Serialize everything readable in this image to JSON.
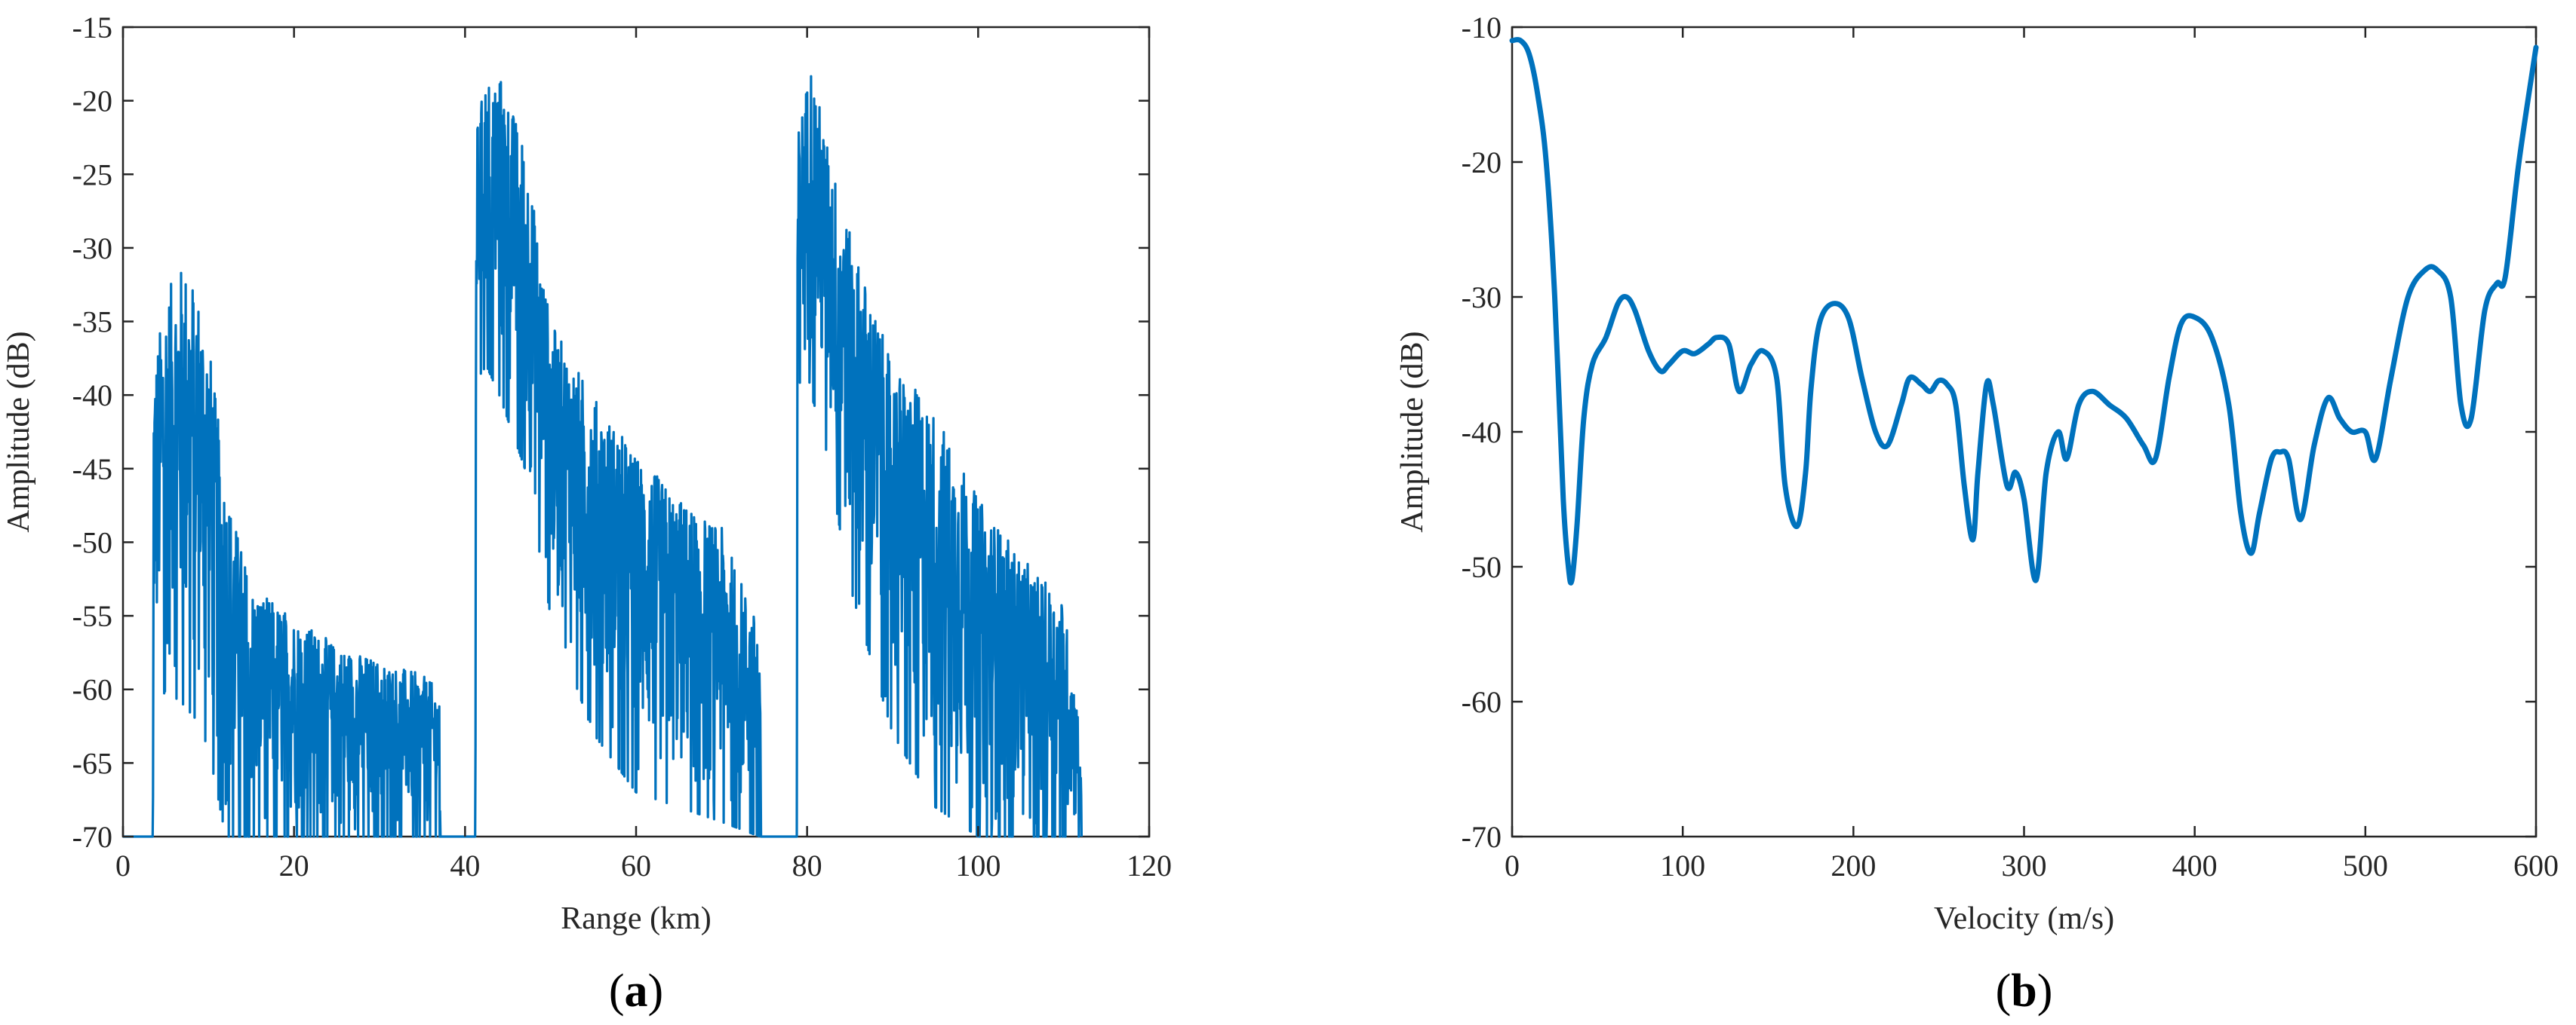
{
  "colors": {
    "series": "#0072BD",
    "axis": "#262626",
    "background": "#ffffff"
  },
  "chart_data": [
    {
      "type": "line",
      "panel_label": "a",
      "xlabel": "Range (km)",
      "ylabel": "Amplitude (dB)",
      "xlim": [
        0,
        120
      ],
      "ylim": [
        -70,
        -15
      ],
      "xticks": [
        0,
        20,
        40,
        60,
        80,
        100,
        120
      ],
      "yticks": [
        -15,
        -20,
        -25,
        -30,
        -35,
        -40,
        -45,
        -50,
        -55,
        -60,
        -65,
        -70
      ],
      "grid": false,
      "series": [
        {
          "style": "dense oscillating returns (estimated envelopes)",
          "x": [
            0,
            3.5,
            3.6,
            5,
            7,
            8.5,
            10,
            12,
            15,
            20,
            25,
            30,
            35,
            37,
            37.1,
            41.2,
            41.3,
            42.5,
            44,
            47,
            50,
            55,
            60,
            65,
            70,
            74.5,
            74.6,
            78.8,
            78.9,
            80.5,
            82,
            85,
            90,
            95,
            100,
            105,
            110,
            112,
            112.1
          ],
          "upper": [
            -70,
            -70,
            -38,
            -33,
            -31,
            -32,
            -36,
            -46,
            -53,
            -55,
            -57,
            -58,
            -59,
            -60,
            -70,
            -70,
            -22,
            -18,
            -18,
            -23,
            -35,
            -40,
            -44,
            -47,
            -49,
            -56,
            -70,
            -70,
            -22,
            -17,
            -22,
            -29,
            -38,
            -41,
            -47,
            -51,
            -54,
            -63,
            -70
          ],
          "lower": [
            -70,
            -70,
            -62,
            -60,
            -61,
            -62,
            -64,
            -70,
            -70,
            -70,
            -70,
            -70,
            -70,
            -70,
            -70,
            -70,
            -39,
            -38,
            -40,
            -45,
            -55,
            -63,
            -67,
            -68,
            -69,
            -70,
            -70,
            -70,
            -39,
            -40,
            -43,
            -53,
            -63,
            -68,
            -70,
            -70,
            -70,
            -70,
            -70
          ]
        }
      ]
    },
    {
      "type": "line",
      "panel_label": "b",
      "xlabel": "Velocity (m/s)",
      "ylabel": "Amplitude (dB)",
      "xlim": [
        0,
        600
      ],
      "ylim": [
        -70,
        -10
      ],
      "xticks": [
        0,
        100,
        200,
        300,
        400,
        500,
        600
      ],
      "yticks": [
        -10,
        -20,
        -30,
        -40,
        -50,
        -60,
        -70
      ],
      "grid": false,
      "series": [
        {
          "x": [
            0,
            5,
            10,
            15,
            20,
            25,
            30,
            33,
            35,
            38,
            42,
            47,
            55,
            62,
            67,
            72,
            80,
            87,
            92,
            100,
            107,
            115,
            120,
            127,
            133,
            140,
            147,
            155,
            160,
            167,
            172,
            175,
            180,
            188,
            197,
            205,
            213,
            220,
            228,
            233,
            240,
            245,
            250,
            255,
            260,
            265,
            270,
            273,
            278,
            282,
            290,
            295,
            300,
            307,
            313,
            320,
            325,
            332,
            340,
            350,
            360,
            370,
            377,
            385,
            392,
            400,
            410,
            420,
            427,
            433,
            438,
            445,
            450,
            455,
            462,
            470,
            478,
            485,
            492,
            500,
            506,
            515,
            525,
            535,
            542,
            550,
            556,
            562,
            570,
            577,
            582,
            590,
            600
          ],
          "y": [
            -11,
            -11,
            -12,
            -15,
            -20,
            -30,
            -45,
            -50,
            -51,
            -47,
            -39,
            -35,
            -33,
            -30.5,
            -30,
            -31,
            -34,
            -35.5,
            -35,
            -34,
            -34.2,
            -33.5,
            -33,
            -33.5,
            -37,
            -35,
            -34,
            -36,
            -44,
            -47,
            -43,
            -37,
            -32,
            -30.5,
            -31.5,
            -36,
            -40,
            -41,
            -38,
            -36,
            -36.5,
            -37,
            -36.2,
            -36.5,
            -38,
            -44,
            -48,
            -43,
            -36.5,
            -38,
            -44,
            -43,
            -45,
            -51,
            -43,
            -40,
            -42,
            -38,
            -37,
            -38,
            -39,
            -41,
            -42,
            -36,
            -32,
            -31.5,
            -33,
            -38,
            -46,
            -49,
            -46,
            -42,
            -41.5,
            -42,
            -46.5,
            -41,
            -37.5,
            -39,
            -40,
            -40,
            -42,
            -36,
            -30,
            -28,
            -28,
            -30,
            -38,
            -39,
            -31,
            -29,
            -28.5,
            -20,
            -11.5
          ]
        }
      ]
    }
  ]
}
